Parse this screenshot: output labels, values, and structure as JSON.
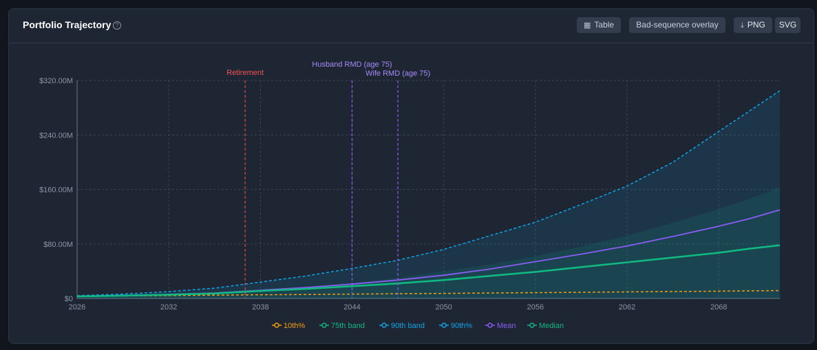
{
  "card": {
    "title": "Portfolio Trajectory",
    "help_icon": "?",
    "buttons": {
      "table": "Table",
      "table_icon": "table-icon",
      "bad_sequence": "Bad-sequence overlay",
      "png": "PNG",
      "png_icon": "download-icon",
      "svg": "SVG"
    }
  },
  "colors": {
    "p10": "#f59e0b",
    "p75": "#10b981",
    "p90band": "#0ea5e9",
    "p90": "#0ea5e9",
    "mean": "#8b5cf6",
    "median": "#10b981",
    "retirement": "#ef4444",
    "rmd": "#8b5cf6"
  },
  "chart_data": {
    "type": "line",
    "title": "",
    "xlabel": "",
    "ylabel": "",
    "xlim": [
      2026,
      2072
    ],
    "ylim": [
      0,
      320
    ],
    "x_ticks": [
      2026,
      2032,
      2038,
      2044,
      2050,
      2056,
      2062,
      2068
    ],
    "x_tick_labels": [
      "2026",
      "2032",
      "2038",
      "2044",
      "2050",
      "2056",
      "2062",
      "2068"
    ],
    "y_ticks": [
      0,
      80,
      160,
      240,
      320
    ],
    "y_tick_labels": [
      "$0",
      "$80.00M",
      "$160.00M",
      "$240.00M",
      "$320.00M"
    ],
    "grid": true,
    "legend_position": "bottom-center",
    "x": [
      2026,
      2029,
      2032,
      2035,
      2038,
      2041,
      2044,
      2047,
      2050,
      2053,
      2056,
      2059,
      2062,
      2065,
      2068,
      2070,
      2072
    ],
    "series": [
      {
        "name": "10th%",
        "style": "dashed",
        "values": [
          3,
          3.6,
          4.2,
          4.8,
          5.3,
          5.8,
          6.4,
          6.9,
          7.4,
          8.0,
          8.5,
          9.0,
          9.6,
          10.1,
          10.7,
          11.1,
          11.5
        ]
      },
      {
        "name": "75th band",
        "style": "band",
        "values": [
          3.5,
          5,
          6.8,
          9,
          12.5,
          17,
          23,
          30,
          40,
          50,
          62,
          76,
          92,
          111,
          131,
          146,
          163
        ]
      },
      {
        "name": "90th band",
        "style": "band",
        "values": [
          4,
          6.5,
          10,
          15,
          24,
          33,
          44,
          56,
          72,
          92,
          112,
          138,
          165,
          200,
          245,
          275,
          305
        ]
      },
      {
        "name": "90th%",
        "style": "dashed",
        "values": [
          4,
          6.5,
          10,
          15,
          24,
          33,
          44,
          56,
          72,
          92,
          112,
          138,
          165,
          200,
          245,
          275,
          305
        ]
      },
      {
        "name": "Mean",
        "style": "solid",
        "values": [
          3.2,
          4.5,
          6,
          8,
          12,
          16,
          21,
          27,
          34,
          43,
          54,
          65,
          77,
          91,
          106,
          117,
          130
        ]
      },
      {
        "name": "Median",
        "style": "bold",
        "values": [
          3,
          4,
          5.5,
          7.3,
          11,
          14,
          18,
          22,
          27,
          33,
          39,
          46,
          53,
          60,
          67,
          73,
          78
        ]
      }
    ],
    "annotations": [
      {
        "label": "Retirement",
        "x": 2037,
        "color_key": "retirement"
      },
      {
        "label": "Husband RMD (age 75)",
        "x": 2044,
        "color_key": "rmd"
      },
      {
        "label": "Wife RMD (age 75)",
        "x": 2047,
        "color_key": "rmd"
      }
    ]
  }
}
